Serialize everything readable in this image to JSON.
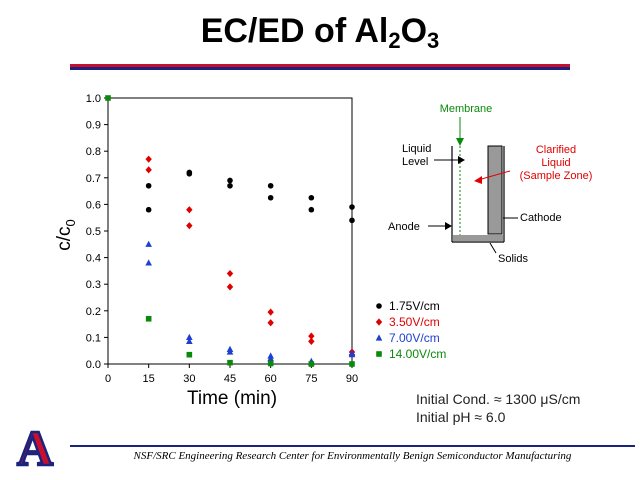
{
  "title": {
    "main": "EC/ED of Al",
    "sub": "2",
    "mid": "O",
    "sub2": "3"
  },
  "colors": {
    "rule_top": "#c8102e",
    "rule_bottom": "#1a237e",
    "logo_red": "#c8102e",
    "logo_blue": "#1a237e"
  },
  "chart_data": {
    "type": "scatter",
    "xlabel": "Time (min)",
    "ylabel": "c/c",
    "ylabel_sub": "0",
    "xlim": [
      0,
      90
    ],
    "ylim": [
      0,
      1.0
    ],
    "xticks": [
      "0",
      "15",
      "30",
      "45",
      "60",
      "75",
      "90"
    ],
    "yticks": [
      "0.0",
      "0.1",
      "0.2",
      "0.3",
      "0.4",
      "0.5",
      "0.6",
      "0.7",
      "0.8",
      "0.9",
      "1.0"
    ],
    "grid": false,
    "legend_position": "bottom-right",
    "series": [
      {
        "name": "1.75V/cm",
        "color": "#000000",
        "marker": "circle",
        "points": [
          [
            15,
            0.67
          ],
          [
            15,
            0.58
          ],
          [
            30,
            0.72
          ],
          [
            30,
            0.715
          ],
          [
            45,
            0.69
          ],
          [
            45,
            0.67
          ],
          [
            60,
            0.67
          ],
          [
            60,
            0.625
          ],
          [
            75,
            0.625
          ],
          [
            75,
            0.58
          ],
          [
            90,
            0.59
          ],
          [
            90,
            0.54
          ]
        ]
      },
      {
        "name": "3.50V/cm",
        "color": "#e00000",
        "marker": "diamond",
        "points": [
          [
            15,
            0.77
          ],
          [
            15,
            0.73
          ],
          [
            30,
            0.58
          ],
          [
            30,
            0.52
          ],
          [
            45,
            0.34
          ],
          [
            45,
            0.29
          ],
          [
            60,
            0.195
          ],
          [
            60,
            0.155
          ],
          [
            75,
            0.105
          ],
          [
            75,
            0.085
          ],
          [
            90,
            0.045
          ],
          [
            90,
            0.035
          ]
        ]
      },
      {
        "name": "7.00V/cm",
        "color": "#1f3fd0",
        "marker": "triangle",
        "points": [
          [
            15,
            0.45
          ],
          [
            15,
            0.38
          ],
          [
            30,
            0.1
          ],
          [
            30,
            0.085
          ],
          [
            45,
            0.055
          ],
          [
            45,
            0.045
          ],
          [
            60,
            0.03
          ],
          [
            60,
            0.02
          ],
          [
            75,
            0.01
          ],
          [
            75,
            0.005
          ],
          [
            90,
            0.04
          ],
          [
            90,
            0.035
          ]
        ]
      },
      {
        "name": "14.00V/cm",
        "color": "#0a8a0a",
        "marker": "square",
        "points": [
          [
            0,
            1.0
          ],
          [
            15,
            0.17
          ],
          [
            30,
            0.035
          ],
          [
            45,
            0.005
          ],
          [
            60,
            0.002
          ],
          [
            75,
            0.0
          ],
          [
            90,
            0.0
          ]
        ]
      }
    ]
  },
  "diagram": {
    "membrane": "Membrane",
    "liquid_level_1": "Liquid",
    "liquid_level_2": "Level",
    "clarified_1": "Clarified",
    "clarified_2": "Liquid",
    "clarified_3": "(Sample Zone)",
    "anode": "Anode",
    "cathode": "Cathode",
    "solids": "Solids"
  },
  "notes": {
    "line1": "Initial Cond. ≈ 1300 μS/cm",
    "line2": "Initial pH ≈ 6.0"
  },
  "footer": "NSF/SRC Engineering Research Center for Environmentally Benign Semiconductor Manufacturing",
  "logo": {
    "letter": "A"
  }
}
